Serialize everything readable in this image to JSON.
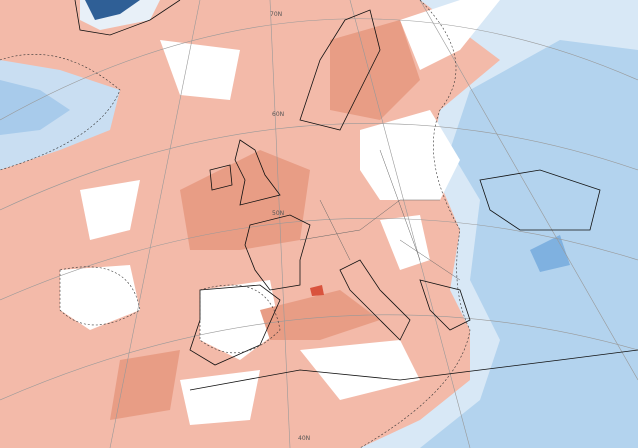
{
  "map": {
    "latitude_labels": [
      "70N",
      "60N",
      "50N",
      "40N"
    ]
  }
}
